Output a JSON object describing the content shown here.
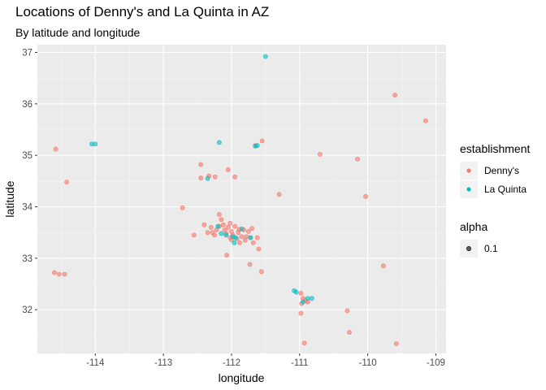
{
  "chart_data": {
    "type": "scatter",
    "title": "Locations of Denny's and La Quinta in AZ",
    "subtitle": "By latitude and longitude",
    "xlabel": "longitude",
    "ylabel": "latitude",
    "xlim": [
      -114.85,
      -108.85
    ],
    "ylim": [
      31.15,
      37.15
    ],
    "xticks": [
      -114,
      -113,
      -112,
      -111,
      -110,
      -109
    ],
    "yticks": [
      32,
      33,
      34,
      35,
      36,
      37
    ],
    "grid": true,
    "background": "#EBEBEB",
    "point_alpha": 0.6,
    "legend": {
      "placement": "right",
      "color_title": "establishment",
      "alpha_title": "alpha",
      "alpha_label": "0.1"
    },
    "series": [
      {
        "name": "Denny's",
        "color": "#F8766D",
        "points": [
          [
            -114.58,
            35.12
          ],
          [
            -114.42,
            34.48
          ],
          [
            -114.6,
            32.72
          ],
          [
            -114.53,
            32.69
          ],
          [
            -114.45,
            32.69
          ],
          [
            -112.45,
            34.82
          ],
          [
            -112.33,
            34.6
          ],
          [
            -112.45,
            34.56
          ],
          [
            -112.24,
            34.58
          ],
          [
            -112.05,
            34.72
          ],
          [
            -111.95,
            34.58
          ],
          [
            -111.55,
            35.28
          ],
          [
            -111.65,
            35.19
          ],
          [
            -110.7,
            35.02
          ],
          [
            -110.15,
            34.93
          ],
          [
            -111.3,
            34.24
          ],
          [
            -112.72,
            33.98
          ],
          [
            -110.03,
            34.2
          ],
          [
            -109.6,
            36.17
          ],
          [
            -109.15,
            35.67
          ],
          [
            -112.55,
            33.45
          ],
          [
            -112.4,
            33.65
          ],
          [
            -112.35,
            33.5
          ],
          [
            -112.3,
            33.6
          ],
          [
            -112.25,
            33.45
          ],
          [
            -112.22,
            33.55
          ],
          [
            -112.18,
            33.85
          ],
          [
            -112.15,
            33.75
          ],
          [
            -112.12,
            33.65
          ],
          [
            -112.1,
            33.55
          ],
          [
            -112.08,
            33.48
          ],
          [
            -112.05,
            33.6
          ],
          [
            -112.02,
            33.4
          ],
          [
            -112.0,
            33.52
          ],
          [
            -111.98,
            33.45
          ],
          [
            -111.95,
            33.62
          ],
          [
            -111.92,
            33.38
          ],
          [
            -111.9,
            33.5
          ],
          [
            -111.88,
            33.3
          ],
          [
            -111.85,
            33.42
          ],
          [
            -111.82,
            33.55
          ],
          [
            -111.8,
            33.35
          ],
          [
            -111.78,
            33.42
          ],
          [
            -111.75,
            33.52
          ],
          [
            -111.72,
            33.4
          ],
          [
            -111.68,
            33.3
          ],
          [
            -111.62,
            33.4
          ],
          [
            -111.6,
            33.18
          ],
          [
            -112.07,
            33.06
          ],
          [
            -111.73,
            32.88
          ],
          [
            -111.56,
            32.74
          ],
          [
            -112.28,
            33.5
          ],
          [
            -112.18,
            33.62
          ],
          [
            -112.02,
            33.68
          ],
          [
            -111.89,
            33.56
          ],
          [
            -111.7,
            33.58
          ],
          [
            -112.0,
            33.36
          ],
          [
            -110.98,
            32.32
          ],
          [
            -110.95,
            32.22
          ],
          [
            -110.92,
            32.18
          ],
          [
            -110.97,
            32.12
          ],
          [
            -110.88,
            32.15
          ],
          [
            -110.98,
            31.93
          ],
          [
            -110.93,
            31.35
          ],
          [
            -110.3,
            31.98
          ],
          [
            -110.27,
            31.56
          ],
          [
            -109.77,
            32.85
          ],
          [
            -109.58,
            31.34
          ]
        ]
      },
      {
        "name": "La Quinta",
        "color": "#00BFC4",
        "points": [
          [
            -111.5,
            36.92
          ],
          [
            -114.05,
            35.22
          ],
          [
            -114.0,
            35.22
          ],
          [
            -112.18,
            35.25
          ],
          [
            -111.65,
            35.18
          ],
          [
            -111.62,
            35.19
          ],
          [
            -112.35,
            34.55
          ],
          [
            -112.2,
            33.62
          ],
          [
            -112.08,
            33.45
          ],
          [
            -111.98,
            33.42
          ],
          [
            -111.94,
            33.4
          ],
          [
            -111.96,
            33.3
          ],
          [
            -111.85,
            33.57
          ],
          [
            -111.72,
            33.4
          ],
          [
            -112.15,
            33.48
          ],
          [
            -111.08,
            32.37
          ],
          [
            -111.05,
            32.34
          ],
          [
            -110.95,
            32.15
          ],
          [
            -110.88,
            32.22
          ],
          [
            -110.82,
            32.22
          ]
        ]
      }
    ]
  }
}
